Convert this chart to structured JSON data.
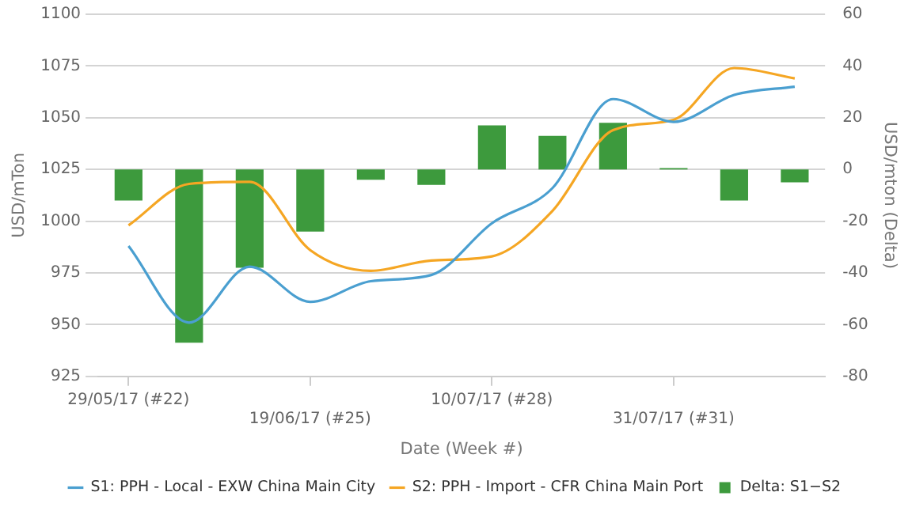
{
  "chart_data": {
    "type": "line",
    "xlabel": "Date (Week #)",
    "ylabel": "USD/mTon",
    "y2label": "USD/mton (Delta)",
    "categories": [
      "29/05/17 (#22)",
      null,
      null,
      "19/06/17 (#25)",
      null,
      null,
      "10/07/17 (#28)",
      null,
      null,
      "31/07/17 (#31)",
      null,
      null
    ],
    "series": [
      {
        "name": "S1: PPH - Local - EXW China Main City",
        "color": "#4a9fd0",
        "values": [
          988,
          951,
          978,
          961,
          971,
          974,
          999,
          1016,
          1059,
          1048,
          1061,
          1065
        ]
      },
      {
        "name": "S2: PPH - Import - CFR China Main Port",
        "color": "#f5a623",
        "values": [
          998,
          1018,
          1019,
          986,
          976,
          981,
          983,
          1005,
          1044,
          1049,
          1074,
          1069
        ]
      },
      {
        "name": "Delta: S1−S2",
        "type": "bar",
        "axis": "y2",
        "color": "#3d9a3d",
        "values": [
          -12,
          -67,
          -38,
          -24,
          -4,
          -6,
          17,
          13,
          18,
          0.5,
          -12,
          -5
        ]
      }
    ],
    "ylim": [
      925,
      1100
    ],
    "yticks": [
      925,
      950,
      975,
      1000,
      1025,
      1050,
      1075,
      1100
    ],
    "y2lim": [
      -80,
      60
    ],
    "y2ticks": [
      -80,
      -60,
      -40,
      -20,
      0,
      20,
      40,
      60
    ],
    "grid": "y",
    "legend": "bottom"
  }
}
